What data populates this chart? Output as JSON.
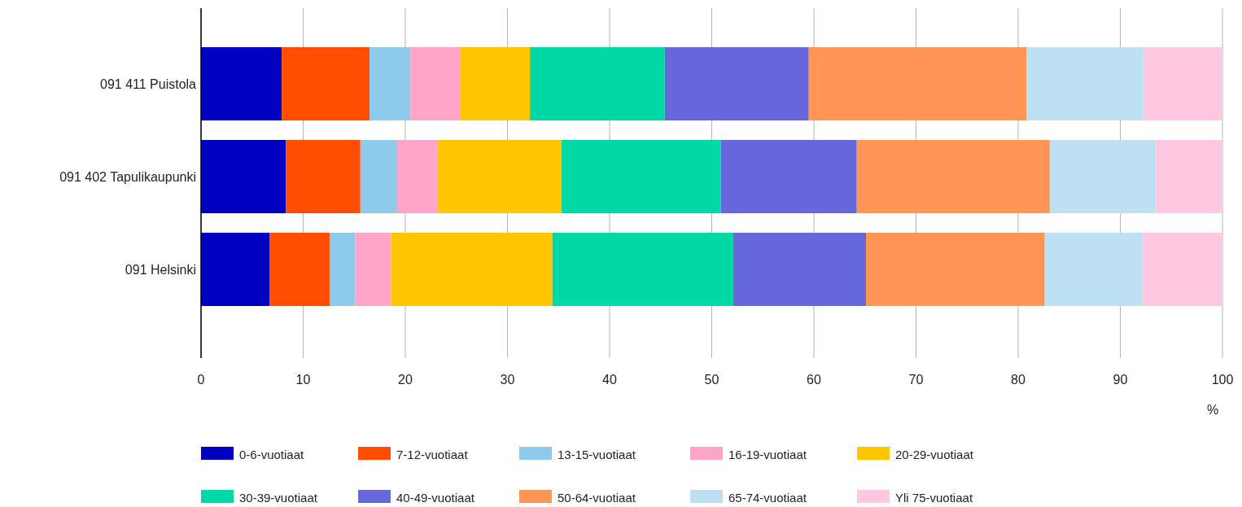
{
  "chart_data": {
    "type": "bar",
    "orientation": "horizontal",
    "stacked": true,
    "categories": [
      "091 411 Puistola",
      "091 402 Tapulikaupunki",
      "091 Helsinki"
    ],
    "xlabel": "%",
    "xlim": [
      0,
      100
    ],
    "xticks": [
      0,
      10,
      20,
      30,
      40,
      50,
      60,
      70,
      80,
      90,
      100
    ],
    "grid": "x",
    "legend": "bottom",
    "series": [
      {
        "name": "0-6-vuotiaat",
        "color": "#0000c0",
        "values": [
          7.9,
          8.3,
          6.7
        ]
      },
      {
        "name": "7-12-vuotiaat",
        "color": "#ff4e00",
        "values": [
          8.6,
          7.3,
          5.9
        ]
      },
      {
        "name": "13-15-vuotiaat",
        "color": "#8ecaec",
        "values": [
          4.0,
          3.6,
          2.5
        ]
      },
      {
        "name": "16-19-vuotiaat",
        "color": "#ffa5c9",
        "values": [
          4.9,
          4.0,
          3.5
        ]
      },
      {
        "name": "20-29-vuotiaat",
        "color": "#ffc600",
        "values": [
          6.8,
          12.1,
          15.8
        ]
      },
      {
        "name": "30-39-vuotiaat",
        "color": "#00d8a5",
        "values": [
          13.2,
          15.6,
          17.7
        ]
      },
      {
        "name": "40-49-vuotiaat",
        "color": "#6767dc",
        "values": [
          14.1,
          13.3,
          13.0
        ]
      },
      {
        "name": "50-64-vuotiaat",
        "color": "#ff9653",
        "values": [
          21.3,
          18.9,
          17.5
        ]
      },
      {
        "name": "65-74-vuotiaat",
        "color": "#bde0f2",
        "values": [
          11.5,
          10.4,
          9.6
        ]
      },
      {
        "name": "Yli 75-vuotiaat",
        "color": "#ffc8e0",
        "values": [
          7.7,
          6.5,
          7.8
        ]
      }
    ]
  }
}
